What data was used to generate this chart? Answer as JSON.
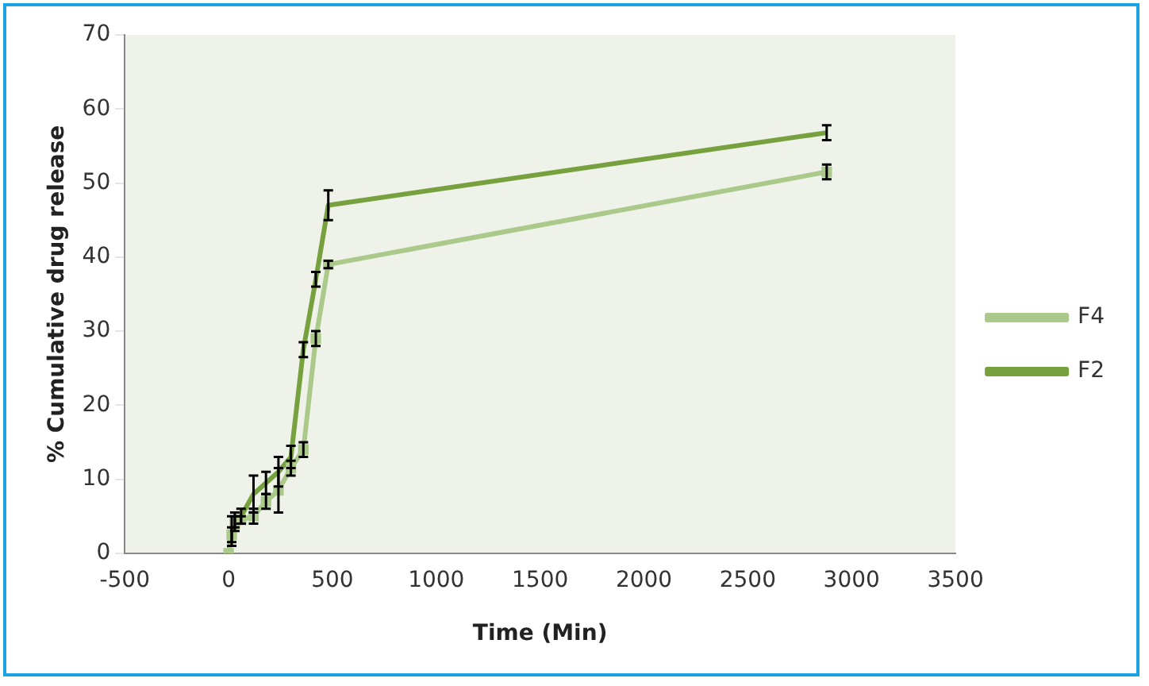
{
  "chart_data": {
    "type": "line",
    "xlabel": "Time (Min)",
    "ylabel": "% Cumulative drug release",
    "xlim": [
      -500,
      3500
    ],
    "xticks": [
      -500,
      0,
      500,
      1000,
      1500,
      2000,
      2500,
      3000,
      3500
    ],
    "ylim": [
      0,
      70
    ],
    "yticks": [
      0,
      10,
      20,
      30,
      40,
      50,
      60,
      70
    ],
    "grid": false,
    "legend": "right",
    "series": [
      {
        "name": "F2",
        "color": "#77a03e",
        "marker": "none",
        "x": [
          0,
          15,
          30,
          60,
          120,
          180,
          240,
          300,
          360,
          420,
          480,
          2880
        ],
        "values": [
          0,
          3,
          4.5,
          5,
          8,
          9.5,
          11,
          13,
          27.5,
          37,
          47,
          56.8
        ],
        "errors": [
          null,
          2,
          1,
          1,
          2.5,
          1.5,
          2,
          1.5,
          1,
          1,
          2,
          1
        ]
      },
      {
        "name": "F4",
        "color": "#aac98a",
        "marker": "square",
        "x": [
          0,
          15,
          30,
          60,
          120,
          180,
          240,
          300,
          360,
          420,
          480,
          2880
        ],
        "values": [
          0,
          2.5,
          4,
          4.5,
          5,
          7,
          8.5,
          11.5,
          14,
          29,
          39,
          51.5
        ],
        "errors": [
          null,
          1,
          1,
          0.5,
          1,
          1,
          3,
          1,
          1,
          1,
          0.5,
          1
        ]
      }
    ]
  }
}
